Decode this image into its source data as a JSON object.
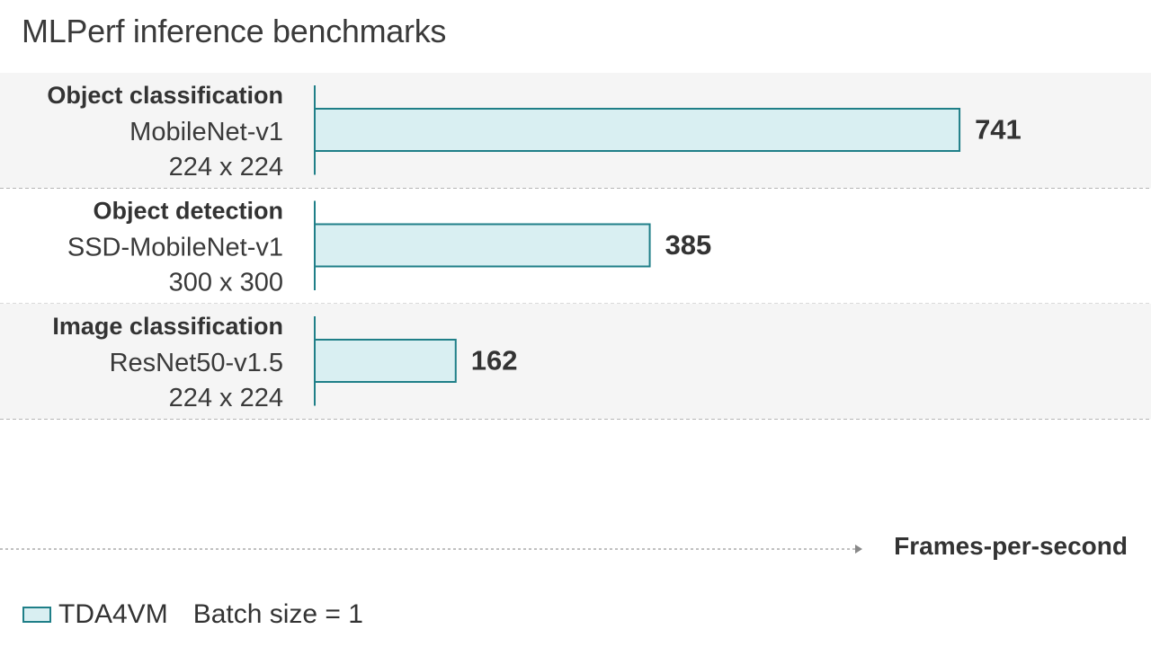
{
  "chart_data": {
    "type": "bar",
    "orientation": "horizontal",
    "title": "MLPerf inference benchmarks",
    "xlabel": "Frames-per-second",
    "ylabel": "",
    "categories": [
      {
        "task": "Object classification",
        "model": "MobileNet-v1",
        "resolution": "224 x 224"
      },
      {
        "task": "Object detection",
        "model": "SSD-MobileNet-v1",
        "resolution": "300 x 300"
      },
      {
        "task": "Image classification",
        "model": "ResNet50-v1.5",
        "resolution": "224 x 224"
      }
    ],
    "series": [
      {
        "name": "TDA4VM",
        "values": [
          741,
          385,
          162
        ],
        "color": "#d9eff2",
        "stroke": "#1f7f88"
      }
    ],
    "xlim": [
      0,
      805
    ],
    "grid": false,
    "legend": "bottom-left",
    "legend_note": "Batch size = 1",
    "row_band_color": "#f5f5f5"
  }
}
